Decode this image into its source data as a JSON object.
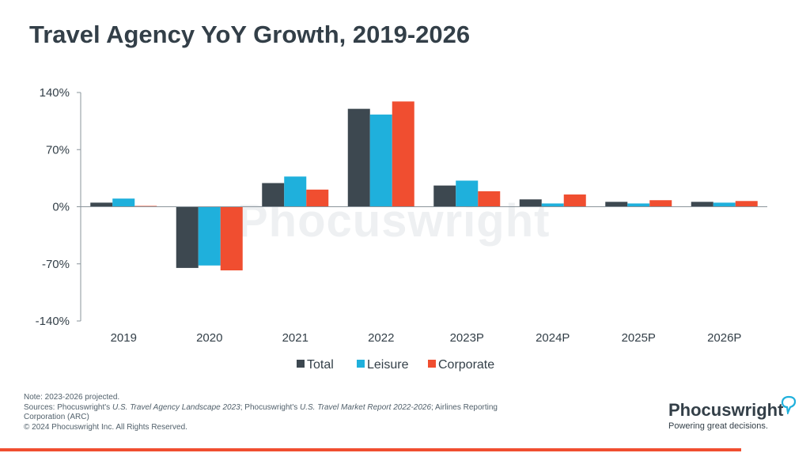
{
  "title": "Travel Agency YoY Growth, 2019-2026",
  "chart_data": {
    "type": "bar",
    "title": "Travel Agency YoY Growth, 2019-2026",
    "categories": [
      "2019",
      "2020",
      "2021",
      "2022",
      "2023P",
      "2024P",
      "2025P",
      "2026P"
    ],
    "series": [
      {
        "name": "Total",
        "color": "#3d4850",
        "values": [
          5,
          -75,
          29,
          120,
          26,
          9,
          6,
          6
        ]
      },
      {
        "name": "Leisure",
        "color": "#1fb0dc",
        "values": [
          10,
          -72,
          37,
          113,
          32,
          4,
          4,
          5
        ]
      },
      {
        "name": "Corporate",
        "color": "#f04e30",
        "values": [
          1,
          -78,
          21,
          129,
          19,
          15,
          8,
          7
        ]
      }
    ],
    "ylim": [
      -140,
      140
    ],
    "yticks": [
      140,
      70,
      0,
      -70,
      -140
    ],
    "ytick_labels": [
      "140%",
      "70%",
      "0%",
      "-70%",
      "-140%"
    ],
    "legend_position": "bottom-center",
    "grid": false
  },
  "watermark": "Phocuswright",
  "footer": {
    "note": "Note: 2023-2026 projected.",
    "sources_prefix": "Sources: Phocuswright's ",
    "source1": "U.S. Travel Agency Landscape 2023",
    "sources_mid": "; Phocuswright's ",
    "source2": "U.S. Travel Market Report 2022-2026",
    "sources_suffix": "; Airlines Reporting Corporation (ARC)",
    "copyright": "© 2024 Phocuswright Inc. All Rights Reserved."
  },
  "logo": {
    "name": "Phocuswright",
    "tagline": "Powering great decisions."
  }
}
